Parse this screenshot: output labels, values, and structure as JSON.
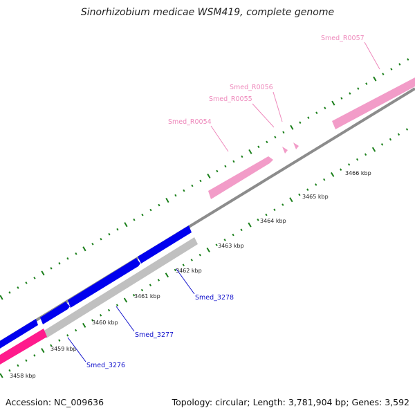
{
  "title": "Sinorhizobium medicae WSM419, complete genome",
  "footer": {
    "accession": "Accession: NC_009636",
    "summary": "Topology: circular; Length: 3,781,904 bp; Genes: 3,592"
  },
  "colors": {
    "backbone": "#8c8c8c",
    "cds_forward": "#0000ee",
    "cds_reverse": "#c0c0c0",
    "rna": "#f29cc8",
    "highlight": "#ff1a8c",
    "tick": "#1a7f1a",
    "label_blue": "#1010cc",
    "label_pink": "#ee88bb"
  },
  "ticks": [
    {
      "label": "3458 kbp"
    },
    {
      "label": "3459 kbp"
    },
    {
      "label": "3460 kbp"
    },
    {
      "label": "3461 kbp"
    },
    {
      "label": "3462 kbp"
    },
    {
      "label": "3463 kbp"
    },
    {
      "label": "3464 kbp"
    },
    {
      "label": "3465 kbp"
    },
    {
      "label": "3466 kbp"
    }
  ],
  "gene_labels": [
    {
      "text": "Smed_3276"
    },
    {
      "text": "Smed_3277"
    },
    {
      "text": "Smed_3278"
    },
    {
      "text": "Smed_R0054"
    },
    {
      "text": "Smed_R0055"
    },
    {
      "text": "Smed_R0056"
    },
    {
      "text": "Smed_R0057"
    }
  ]
}
